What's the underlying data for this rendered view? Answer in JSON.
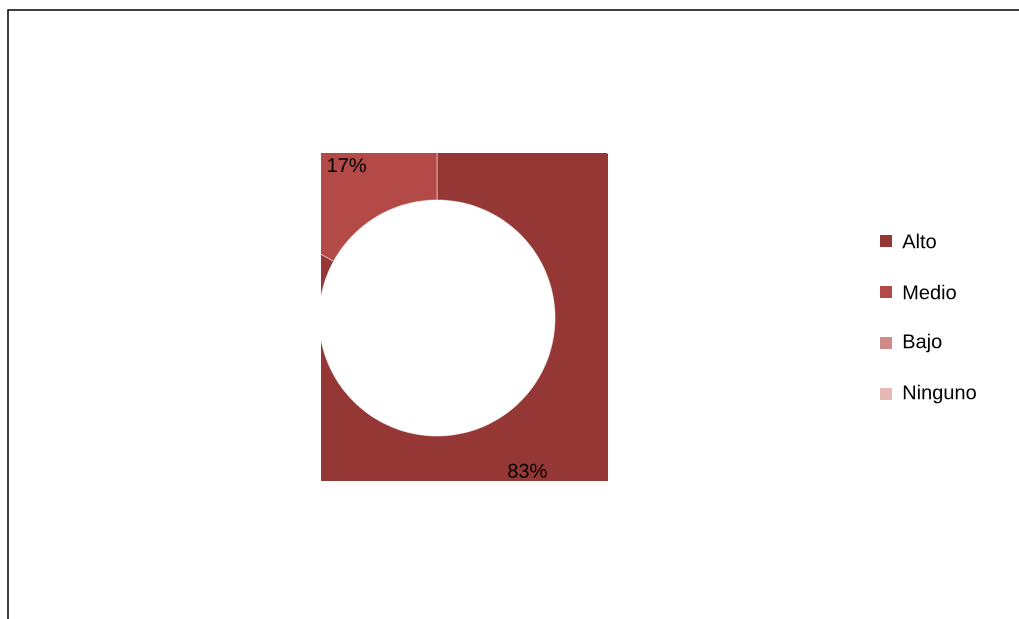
{
  "chart_data": {
    "type": "donut",
    "categories": [
      "Alto",
      "Medio",
      "Bajo",
      "Ninguno"
    ],
    "values": [
      83,
      17,
      0,
      0
    ],
    "colors": [
      "#953735",
      "#b34a47",
      "#d08a88",
      "#e6b9b8"
    ],
    "value_labels": [
      "83%",
      "17%",
      null,
      null
    ],
    "legend": "right"
  }
}
